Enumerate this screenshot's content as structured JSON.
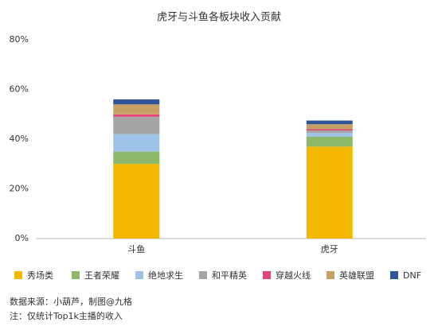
{
  "chart_data": {
    "type": "stacked_bar",
    "title": "虎牙与斗鱼各板块收入贡献",
    "categories": [
      "斗鱼",
      "虎牙"
    ],
    "series": [
      {
        "name": "秀场类",
        "color": "#f5b800",
        "values": [
          30,
          37
        ]
      },
      {
        "name": "王者荣耀",
        "color": "#8db86a",
        "values": [
          5,
          4
        ]
      },
      {
        "name": "绝地求生",
        "color": "#9dc3e6",
        "values": [
          7,
          1.5
        ]
      },
      {
        "name": "和平精英",
        "color": "#a5a5a5",
        "values": [
          7,
          1
        ]
      },
      {
        "name": "穿越火线",
        "color": "#e0457b",
        "values": [
          1,
          0.5
        ]
      },
      {
        "name": "英雄联盟",
        "color": "#c9a063",
        "values": [
          4,
          2
        ]
      },
      {
        "name": "DNF",
        "color": "#2f5597",
        "values": [
          2,
          1.5
        ]
      }
    ],
    "ylim": [
      0,
      80
    ],
    "yticks": [
      {
        "value": 0,
        "label": "0%"
      },
      {
        "value": 20,
        "label": "20%"
      },
      {
        "value": 40,
        "label": "40%"
      },
      {
        "value": 60,
        "label": "60%"
      },
      {
        "value": 80,
        "label": "80%"
      }
    ],
    "grid": false,
    "legend": "bottom",
    "source": "数据来源：小葫芦，制图@九格",
    "note": "注：仅统计Top1k主播的收入"
  }
}
